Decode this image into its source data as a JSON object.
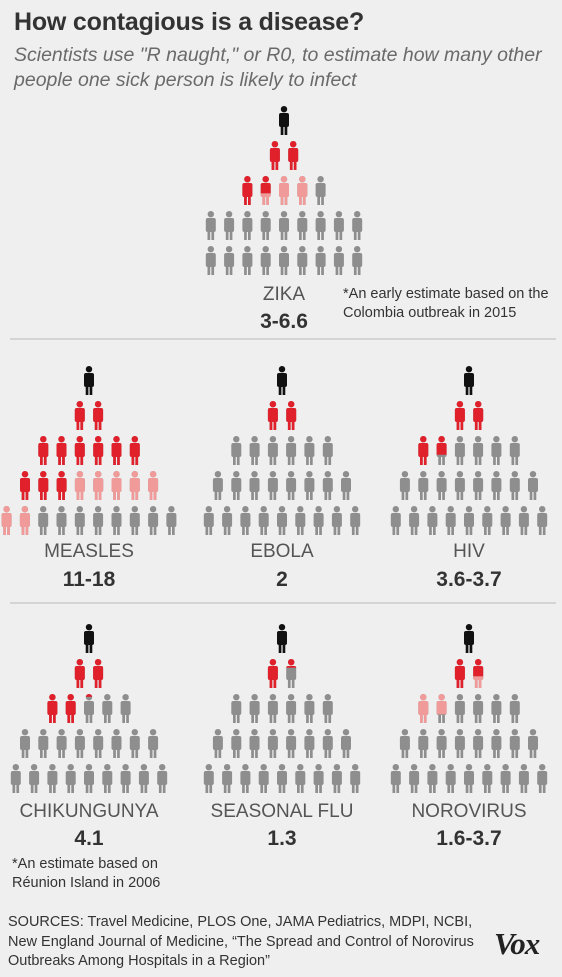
{
  "title": "How contagious is a disease?",
  "subtitle": "Scientists use \"R naught,\" or R0, to estimate how many other people one sick person is likely to infect",
  "colors": {
    "background": "#efefef",
    "patient_zero": "#111111",
    "first_generation": "#e0202b",
    "second_generation": "#f19a9a",
    "uninfected": "#8e8e8e",
    "divider": "#b8b8b8"
  },
  "chart_data": [
    {
      "type": "pictogram",
      "name": "ZIKA",
      "r0_label": "3-6.6",
      "r0_range": [
        3,
        6.6
      ],
      "note": "*An early estimate based on the Colombia outbreak in 2015",
      "rows": [
        {
          "count": 1,
          "red": 0,
          "pink": 0,
          "black": 1
        },
        {
          "count": 2,
          "red": 2,
          "pink": 0
        },
        {
          "count": 5,
          "red": 1.6,
          "pink": 2.4
        },
        {
          "count": 9,
          "red": 0,
          "pink": 0
        },
        {
          "count": 9,
          "red": 0,
          "pink": 0
        }
      ]
    },
    {
      "type": "pictogram",
      "name": "MEASLES",
      "r0_label": "11-18",
      "r0_range": [
        11,
        18
      ],
      "rows": [
        {
          "count": 1,
          "red": 0,
          "pink": 0,
          "black": 1
        },
        {
          "count": 2,
          "red": 2,
          "pink": 0
        },
        {
          "count": 6,
          "red": 6,
          "pink": 0
        },
        {
          "count": 8,
          "red": 3,
          "pink": 5
        },
        {
          "count": 10,
          "red": 0,
          "pink": 2
        }
      ]
    },
    {
      "type": "pictogram",
      "name": "EBOLA",
      "r0_label": "2",
      "r0_range": [
        2,
        2
      ],
      "rows": [
        {
          "count": 1,
          "red": 0,
          "pink": 0,
          "black": 1
        },
        {
          "count": 2,
          "red": 2,
          "pink": 0
        },
        {
          "count": 6,
          "red": 0,
          "pink": 0
        },
        {
          "count": 8,
          "red": 0,
          "pink": 0
        },
        {
          "count": 9,
          "red": 0,
          "pink": 0
        }
      ]
    },
    {
      "type": "pictogram",
      "name": "HIV",
      "r0_label": "3.6-3.7",
      "r0_range": [
        3.6,
        3.7
      ],
      "rows": [
        {
          "count": 1,
          "red": 0,
          "pink": 0,
          "black": 1
        },
        {
          "count": 2,
          "red": 2,
          "pink": 0
        },
        {
          "count": 6,
          "red": 1.65,
          "pink": 0
        },
        {
          "count": 8,
          "red": 0,
          "pink": 0
        },
        {
          "count": 9,
          "red": 0,
          "pink": 0
        }
      ]
    },
    {
      "type": "pictogram",
      "name": "CHIKUNGUNYA",
      "r0_label": "4.1",
      "r0_range": [
        4.1,
        4.1
      ],
      "note": "*An estimate based on Réunion Island in 2006",
      "rows": [
        {
          "count": 1,
          "red": 0,
          "pink": 0,
          "black": 1
        },
        {
          "count": 2,
          "red": 2,
          "pink": 0
        },
        {
          "count": 5,
          "red": 2.1,
          "pink": 0
        },
        {
          "count": 8,
          "red": 0,
          "pink": 0
        },
        {
          "count": 9,
          "red": 0,
          "pink": 0
        }
      ]
    },
    {
      "type": "pictogram",
      "name": "SEASONAL FLU",
      "r0_label": "1.3",
      "r0_range": [
        1.3,
        1.3
      ],
      "rows": [
        {
          "count": 1,
          "red": 0,
          "pink": 0,
          "black": 1
        },
        {
          "count": 2,
          "red": 1.3,
          "pink": 0
        },
        {
          "count": 6,
          "red": 0,
          "pink": 0
        },
        {
          "count": 8,
          "red": 0,
          "pink": 0
        },
        {
          "count": 9,
          "red": 0,
          "pink": 0
        }
      ]
    },
    {
      "type": "pictogram",
      "name": "NOROVIRUS",
      "r0_label": "1.6-3.7",
      "r0_range": [
        1.6,
        3.7
      ],
      "rows": [
        {
          "count": 1,
          "red": 0,
          "pink": 0,
          "black": 1
        },
        {
          "count": 2,
          "red": 1.6,
          "pink": 0.4
        },
        {
          "count": 6,
          "red": 0,
          "pink": 1.7
        },
        {
          "count": 8,
          "red": 0,
          "pink": 0
        },
        {
          "count": 9,
          "red": 0,
          "pink": 0
        }
      ]
    }
  ],
  "notes": {
    "zika": "*An early estimate based on the Colombia outbreak in 2015",
    "chikungunya": "*An estimate based on Réunion Island in 2006"
  },
  "sources": "SOURCES: Travel Medicine, PLOS One, JAMA Pediatrics, MDPI, NCBI, New England Journal of Medicine, “The Spread and Control of Norovirus Outbreaks Among Hospitals in a Region”",
  "brand": "Vox"
}
